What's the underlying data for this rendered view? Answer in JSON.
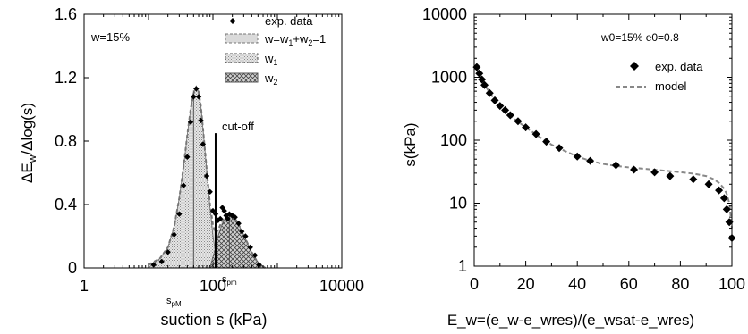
{
  "chart_data": [
    {
      "type": "area",
      "panel": "left",
      "xscale": "log",
      "xlim": [
        1,
        10000
      ],
      "ylim": [
        0,
        1.6
      ],
      "ylabel_base": "ΔE",
      "ylabel_sub": "w",
      "ylabel_tail": "/Δlog(s)",
      "xlabel": "suction s (kPa)",
      "xtick_labels": [
        "1",
        "100",
        "10000"
      ],
      "ytick_labels": [
        "0",
        "0.4",
        "0.8",
        "1.2",
        "1.6"
      ],
      "ytick_values": [
        0,
        0.4,
        0.8,
        1.2,
        1.6
      ],
      "grid": false,
      "legend_position": "top-right",
      "inset_text": "w=15%",
      "cutoff": {
        "s": 110,
        "label": "cut-off"
      },
      "annotations": [
        {
          "base": "s",
          "sub": "pM",
          "s": 50
        },
        {
          "base": "s",
          "sub": "pm",
          "s": 130
        }
      ],
      "legend": {
        "exp": "exp. data",
        "total": {
          "parts": [
            "w=w",
            "1",
            "+w",
            "2",
            "=1"
          ]
        },
        "w1": {
          "base": "w",
          "sub": "1"
        },
        "w2": {
          "base": "w",
          "sub": "2"
        }
      },
      "series": [
        {
          "name": "exp. data",
          "kind": "points",
          "s": [
            12,
            16,
            20,
            25,
            30,
            35,
            40,
            45,
            50,
            55,
            60,
            65,
            70,
            80,
            90,
            100,
            110,
            120,
            130,
            140,
            150,
            160,
            170,
            180,
            200,
            220,
            250,
            280,
            320,
            380,
            450,
            520
          ],
          "values": [
            0.02,
            0.04,
            0.1,
            0.21,
            0.34,
            0.52,
            0.7,
            0.92,
            1.08,
            1.13,
            1.08,
            0.93,
            0.78,
            0.58,
            0.48,
            0.36,
            0.34,
            0.3,
            0.31,
            0.38,
            0.36,
            0.33,
            0.31,
            0.34,
            0.33,
            0.32,
            0.28,
            0.23,
            0.2,
            0.13,
            0.08,
            0.02
          ]
        },
        {
          "name": "w=w1+w2=1",
          "kind": "dashed_total",
          "s": [
            10,
            15,
            20,
            25,
            30,
            35,
            40,
            45,
            50,
            55,
            60,
            65,
            70,
            80,
            90,
            100,
            110,
            120,
            140,
            160,
            180,
            200,
            230,
            260,
            300,
            350,
            400,
            470,
            550,
            650
          ],
          "values": [
            0.02,
            0.06,
            0.13,
            0.26,
            0.44,
            0.64,
            0.84,
            1.0,
            1.1,
            1.14,
            1.11,
            1.02,
            0.88,
            0.62,
            0.4,
            0.27,
            0.22,
            0.24,
            0.3,
            0.33,
            0.34,
            0.33,
            0.3,
            0.26,
            0.21,
            0.15,
            0.1,
            0.05,
            0.02,
            0.0
          ]
        },
        {
          "name": "w1",
          "kind": "area_dotted",
          "s": [
            10,
            15,
            20,
            25,
            30,
            35,
            40,
            45,
            50,
            55,
            60,
            65,
            70,
            80,
            90,
            100,
            110,
            120,
            130,
            140
          ],
          "values": [
            0.0,
            0.06,
            0.13,
            0.26,
            0.44,
            0.64,
            0.84,
            1.0,
            1.1,
            1.14,
            1.11,
            1.02,
            0.88,
            0.62,
            0.38,
            0.2,
            0.09,
            0.04,
            0.01,
            0.0
          ]
        },
        {
          "name": "w2",
          "kind": "area_crosshatch",
          "s": [
            90,
            100,
            110,
            120,
            140,
            160,
            180,
            200,
            230,
            260,
            300,
            350,
            400,
            470,
            550,
            650
          ],
          "values": [
            0.0,
            0.07,
            0.13,
            0.2,
            0.28,
            0.32,
            0.34,
            0.33,
            0.3,
            0.26,
            0.21,
            0.15,
            0.1,
            0.05,
            0.02,
            0.0
          ]
        }
      ]
    },
    {
      "type": "scatter",
      "panel": "right",
      "yscale": "log",
      "xlim": [
        0,
        100
      ],
      "ylim": [
        1,
        10000
      ],
      "xlabel_base": "E",
      "xlabel_sub": "w",
      "xlabel_tail": "=(e",
      "xlabel_full": "E_w=(e_w-e_wres)/(e_wsat-e_wres)",
      "ylabel": "s(kPa)",
      "xtick_labels": [
        "0",
        "20",
        "40",
        "60",
        "80",
        "100"
      ],
      "xtick_values": [
        0,
        20,
        40,
        60,
        80,
        100
      ],
      "ytick_labels": [
        "1",
        "10",
        "100",
        "1000",
        "10000"
      ],
      "ytick_values": [
        1,
        10,
        100,
        1000,
        10000
      ],
      "grid": false,
      "legend_position": "top-right",
      "inset_text": "w0=15% e0=0.8",
      "legend": {
        "exp": "exp. data",
        "model": "model"
      },
      "series": [
        {
          "name": "exp. data",
          "kind": "points",
          "x": [
            1,
            2,
            3,
            4,
            6,
            8,
            10,
            12,
            14,
            17,
            20,
            24,
            28,
            33,
            40,
            45,
            55,
            62,
            70,
            76,
            85,
            91,
            95,
            97,
            98,
            99,
            100
          ],
          "y": [
            1450,
            1150,
            920,
            750,
            560,
            430,
            350,
            300,
            250,
            200,
            160,
            125,
            95,
            75,
            55,
            47,
            40,
            34,
            31,
            27,
            24,
            20,
            16,
            12,
            8,
            5,
            2.8
          ]
        },
        {
          "name": "model",
          "kind": "dashed",
          "x": [
            1,
            2,
            4,
            6,
            8,
            10,
            13,
            16,
            20,
            25,
            30,
            35,
            40,
            45,
            50,
            55,
            60,
            65,
            70,
            75,
            80,
            85,
            90,
            93,
            95,
            97,
            98,
            99,
            100
          ],
          "y": [
            1400,
            1120,
            770,
            570,
            440,
            350,
            270,
            210,
            160,
            115,
            85,
            68,
            55,
            47,
            42,
            39,
            37,
            35.5,
            34,
            32.5,
            31,
            29.5,
            27,
            24,
            21,
            17,
            14,
            10,
            4
          ]
        }
      ]
    }
  ]
}
